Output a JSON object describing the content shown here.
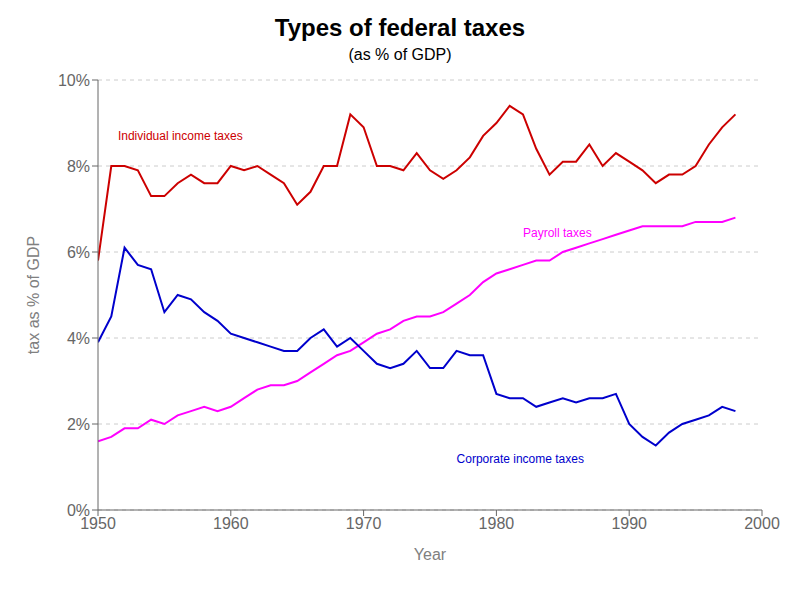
{
  "chart_data": {
    "type": "line",
    "title": "Types of federal taxes",
    "subtitle": "(as % of GDP)",
    "x_label": "Year",
    "y_label": "tax as % of GDP",
    "x": [
      1950,
      1951,
      1952,
      1953,
      1954,
      1955,
      1956,
      1957,
      1958,
      1959,
      1960,
      1961,
      1962,
      1963,
      1964,
      1965,
      1966,
      1967,
      1968,
      1969,
      1970,
      1971,
      1972,
      1973,
      1974,
      1975,
      1976,
      1977,
      1978,
      1979,
      1980,
      1981,
      1982,
      1983,
      1984,
      1985,
      1986,
      1987,
      1988,
      1989,
      1990,
      1991,
      1992,
      1993,
      1994,
      1995,
      1996,
      1997,
      1998
    ],
    "series": [
      {
        "name": "Individual income taxes",
        "color": "#cc0000",
        "values": [
          5.8,
          8.0,
          8.0,
          7.9,
          7.3,
          7.3,
          7.6,
          7.8,
          7.6,
          7.6,
          8.0,
          7.9,
          8.0,
          7.8,
          7.6,
          7.1,
          7.4,
          8.0,
          8.0,
          9.2,
          8.9,
          8.0,
          8.0,
          7.9,
          8.3,
          7.9,
          7.7,
          7.9,
          8.2,
          8.7,
          9.0,
          9.4,
          9.2,
          8.4,
          7.8,
          8.1,
          8.1,
          8.5,
          8.0,
          8.3,
          8.1,
          7.9,
          7.6,
          7.8,
          7.8,
          8.0,
          8.5,
          8.9,
          9.2
        ]
      },
      {
        "name": "Payroll taxes",
        "color": "#ff00ff",
        "values": [
          1.6,
          1.7,
          1.9,
          1.9,
          2.1,
          2.0,
          2.2,
          2.3,
          2.4,
          2.3,
          2.4,
          2.6,
          2.8,
          2.9,
          2.9,
          3.0,
          3.2,
          3.4,
          3.6,
          3.7,
          3.9,
          4.1,
          4.2,
          4.4,
          4.5,
          4.5,
          4.6,
          4.8,
          5.0,
          5.3,
          5.5,
          5.6,
          5.7,
          5.8,
          5.8,
          6.0,
          6.1,
          6.2,
          6.3,
          6.4,
          6.5,
          6.6,
          6.6,
          6.6,
          6.6,
          6.7,
          6.7,
          6.7,
          6.8
        ]
      },
      {
        "name": "Corporate income  taxes",
        "color": "#0000cc",
        "values": [
          3.9,
          4.5,
          6.1,
          5.7,
          5.6,
          4.6,
          5.0,
          4.9,
          4.6,
          4.4,
          4.1,
          4.0,
          3.9,
          3.8,
          3.7,
          3.7,
          4.0,
          4.2,
          3.8,
          4.0,
          3.7,
          3.4,
          3.3,
          3.4,
          3.7,
          3.3,
          3.3,
          3.7,
          3.6,
          3.6,
          2.7,
          2.6,
          2.6,
          2.4,
          2.5,
          2.6,
          2.5,
          2.6,
          2.6,
          2.7,
          2.0,
          1.7,
          1.5,
          1.8,
          2.0,
          2.1,
          2.2,
          2.4,
          2.3
        ]
      }
    ],
    "annotations": [
      {
        "text": "Individual income taxes",
        "x": 1951.5,
        "y": 8.6,
        "color": "#cc0000"
      },
      {
        "text": "Payroll taxes",
        "x": 1982,
        "y": 6.35,
        "color": "#ff00ff"
      },
      {
        "text": "Corporate income  taxes",
        "x": 1977,
        "y": 1.1,
        "color": "#0000cc"
      }
    ],
    "xlim": [
      1950,
      2000
    ],
    "xticks": [
      1950,
      1960,
      1970,
      1980,
      1990,
      2000
    ],
    "ylim": [
      0,
      10
    ],
    "yticks": [
      {
        "value": 0,
        "label": "0%"
      },
      {
        "value": 2,
        "label": "2%"
      },
      {
        "value": 4,
        "label": "4%"
      },
      {
        "value": 6,
        "label": "6%"
      },
      {
        "value": 8,
        "label": "8%"
      },
      {
        "value": 10,
        "label": "10%"
      }
    ],
    "grid": true
  }
}
